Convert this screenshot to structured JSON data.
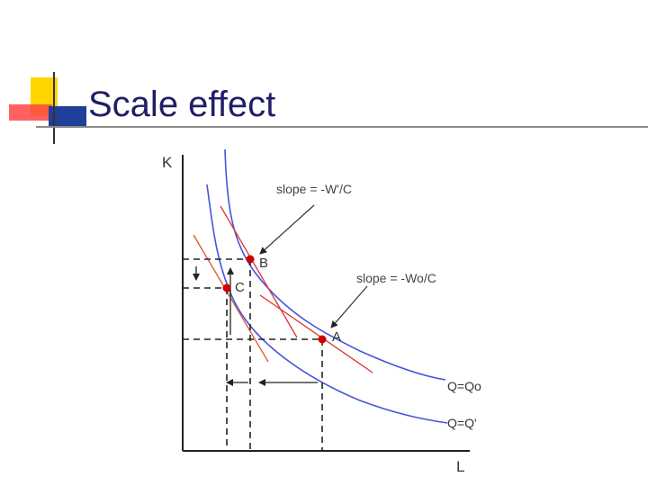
{
  "slide": {
    "title": "Scale effect",
    "colors": {
      "title": "#1f1f66",
      "accent_yellow": "#ffd500",
      "accent_red": "#ff3333",
      "accent_blue": "#1f3f99",
      "curve": "#4455dd",
      "tangent": "#dd3333",
      "point": "#cc0000"
    }
  },
  "diagram": {
    "axis_y": "K",
    "axis_x": "L",
    "label_slope_top": "slope = -W'/C",
    "label_slope_bottom": "slope = -Wo/C",
    "point_a": "A",
    "point_b": "B",
    "point_c": "C",
    "curve_q0": "Q=Qo",
    "curve_q1": "Q=Q'"
  }
}
